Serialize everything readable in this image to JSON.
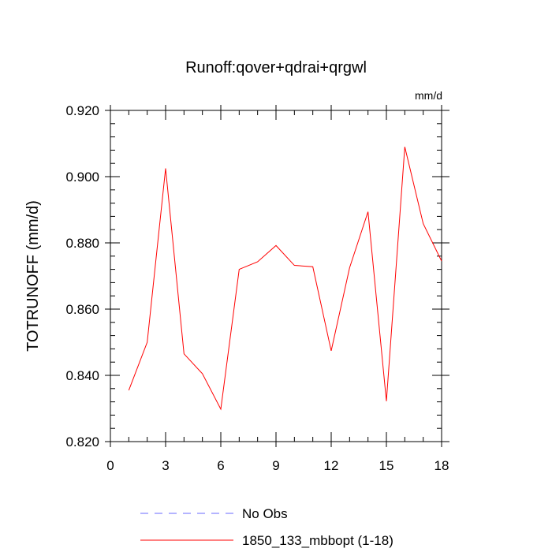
{
  "chart_data": {
    "type": "line",
    "title": "Runoff:qover+qdrai+qrgwl",
    "units_label": "mm/d",
    "ylabel": "TOTRUNOFF  (mm/d)",
    "xlabel": "",
    "xlim": [
      0,
      18
    ],
    "ylim": [
      0.82,
      0.92
    ],
    "x_ticks": [
      0,
      3,
      6,
      9,
      12,
      15,
      18
    ],
    "x_tick_labels": [
      "0",
      "3",
      "6",
      "9",
      "12",
      "15",
      "18"
    ],
    "y_ticks": [
      0.82,
      0.84,
      0.86,
      0.88,
      0.9,
      0.92
    ],
    "y_tick_labels": [
      "0.820",
      "0.840",
      "0.860",
      "0.880",
      "0.900",
      "0.920"
    ],
    "grid": false,
    "legend_position": "bottom",
    "series": [
      {
        "name": "1850_133_mbbopt (1-18)",
        "color": "#ff0000",
        "style": "solid",
        "x": [
          1,
          2,
          3,
          4,
          5,
          6,
          7,
          8,
          9,
          10,
          11,
          12,
          13,
          14,
          15,
          16,
          17,
          18
        ],
        "values": [
          0.8355,
          0.85,
          0.9025,
          0.8465,
          0.8405,
          0.8298,
          0.872,
          0.8743,
          0.8792,
          0.8732,
          0.8728,
          0.8474,
          0.8725,
          0.8894,
          0.8322,
          0.909,
          0.8858,
          0.8745
        ]
      }
    ],
    "legend": [
      {
        "label": "No Obs",
        "color": "#6a6aff",
        "style": "dashed"
      },
      {
        "label": "1850_133_mbbopt (1-18)",
        "color": "#ff0000",
        "style": "solid"
      }
    ]
  }
}
